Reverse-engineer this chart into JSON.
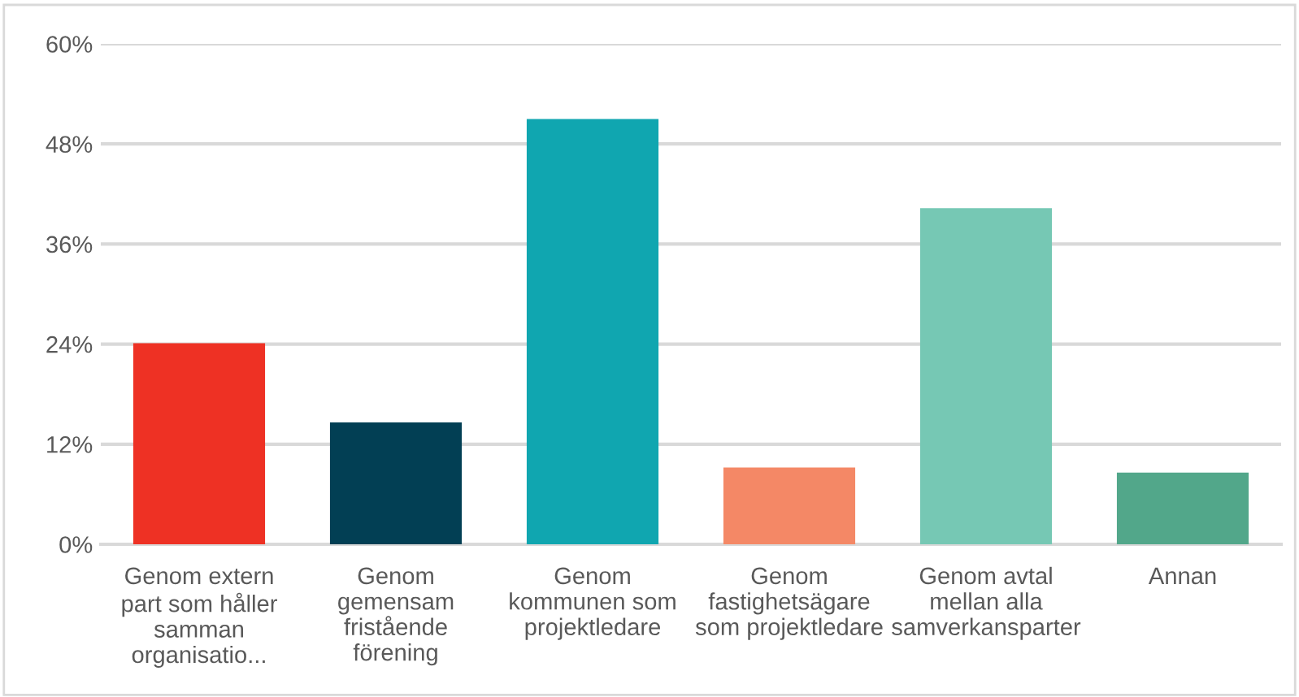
{
  "chart_data": {
    "type": "bar",
    "categories": [
      "Genom extern\npart som håller\nsamman\norganisatio...",
      "Genom\ngemensam\nfristående\nförening",
      "Genom\nkommunen som\nprojektledare",
      "Genom\nfastighetsägare\nsom projektledare",
      "Genom avtal\nmellan alla\nsamverkansparter",
      "Annan"
    ],
    "values": [
      24.1,
      14.6,
      51.0,
      9.2,
      40.3,
      8.6
    ],
    "colors": [
      "#ee3124",
      "#023f54",
      "#10a6b0",
      "#f48866",
      "#76c8b4",
      "#52a78a"
    ],
    "ylim": [
      0,
      60
    ],
    "yticks": [
      {
        "value": 0,
        "label": "0%"
      },
      {
        "value": 12,
        "label": "12%"
      },
      {
        "value": 24,
        "label": "24%"
      },
      {
        "value": 36,
        "label": "36%"
      },
      {
        "value": 48,
        "label": "48%"
      },
      {
        "value": 60,
        "label": "60%"
      }
    ],
    "grid": "y",
    "legend": false
  }
}
